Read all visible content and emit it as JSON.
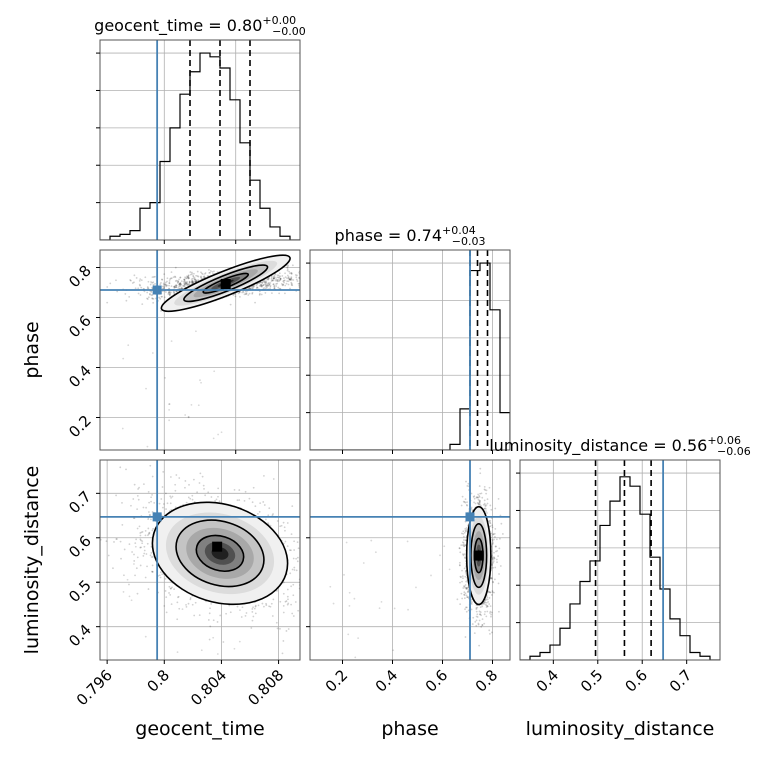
{
  "chart_data": {
    "type": "corner",
    "parameters": [
      "geocent_time",
      "phase",
      "luminosity_distance"
    ],
    "truth_color": "#4682b4",
    "grid": true,
    "panels": [
      {
        "id": "hist-geocent_time",
        "kind": "histogram",
        "param": "geocent_time",
        "title": {
          "lead": "geocent_time = 0.80",
          "sup": "+0.00",
          "sub": "−0.00"
        },
        "xlim": [
          0.7955,
          0.8095
        ],
        "ylim": [
          0,
          1.07
        ],
        "bin_edges": [
          0.7955,
          0.7962,
          0.7969,
          0.7976,
          0.7983,
          0.799,
          0.7997,
          0.8004,
          0.8011,
          0.8018,
          0.8025,
          0.8032,
          0.8039,
          0.8046,
          0.8053,
          0.806,
          0.8067,
          0.8074,
          0.8081,
          0.8088,
          0.8095
        ],
        "counts": [
          0.0,
          0.02,
          0.03,
          0.05,
          0.17,
          0.2,
          0.42,
          0.6,
          0.78,
          0.9,
          1.0,
          0.98,
          0.92,
          0.75,
          0.52,
          0.32,
          0.17,
          0.07,
          0.02,
          0.0
        ],
        "quantiles": [
          0.8018,
          0.8039,
          0.806
        ],
        "truth": 0.7995,
        "xticks": [],
        "yticks": []
      },
      {
        "id": "scatter-geocent_time-phase",
        "kind": "2d",
        "x_param": "geocent_time",
        "y_param": "phase",
        "xlim": [
          0.7955,
          0.8095
        ],
        "ylim": [
          0.07,
          0.87
        ],
        "center": [
          0.8043,
          0.737
        ],
        "spread": [
          0.0022,
          0.022
        ],
        "corr": 0.45,
        "levels": [
          0.7,
          1.3,
          2.0
        ],
        "mode": [
          0.8043,
          0.734
        ],
        "truth": [
          0.7995,
          0.71
        ],
        "xticks": [],
        "yticks": [
          0.2,
          0.4,
          0.6,
          0.8
        ]
      },
      {
        "id": "hist-phase",
        "kind": "histogram",
        "param": "phase",
        "title": {
          "lead": "phase = 0.74",
          "sup": "+0.04",
          "sub": "−0.03"
        },
        "xlim": [
          0.07,
          0.87
        ],
        "ylim": [
          0,
          1.07
        ],
        "bin_edges": [
          0.07,
          0.11,
          0.15,
          0.19,
          0.23,
          0.27,
          0.31,
          0.35,
          0.39,
          0.43,
          0.47,
          0.51,
          0.55,
          0.59,
          0.63,
          0.67,
          0.71,
          0.75,
          0.79,
          0.83,
          0.87
        ],
        "counts": [
          0.0,
          0.0,
          0.0,
          0.0,
          0.0,
          0.0,
          0.0,
          0.0,
          0.0,
          0.0,
          0.0,
          0.0,
          0.0,
          0.0,
          0.03,
          0.22,
          0.96,
          1.0,
          0.75,
          0.2
        ],
        "quantiles": [
          0.71,
          0.74,
          0.78
        ],
        "truth": 0.71,
        "xticks": [],
        "yticks": []
      },
      {
        "id": "scatter-geocent_time-luminosity_distance",
        "kind": "2d",
        "x_param": "geocent_time",
        "y_param": "luminosity_distance",
        "xlim": [
          0.7955,
          0.8095
        ],
        "ylim": [
          0.325,
          0.775
        ],
        "center": [
          0.8039,
          0.565
        ],
        "spread": [
          0.0022,
          0.05
        ],
        "corr": -0.35,
        "levels": [
          0.7,
          1.3,
          2.0
        ],
        "mode": [
          0.8037,
          0.58
        ],
        "truth": [
          0.7995,
          0.647
        ],
        "xticks": [
          0.796,
          0.8,
          0.804,
          0.808
        ],
        "yticks": [
          0.4,
          0.5,
          0.6,
          0.7
        ]
      },
      {
        "id": "scatter-phase-luminosity_distance",
        "kind": "2d",
        "x_param": "phase",
        "y_param": "luminosity_distance",
        "xlim": [
          0.07,
          0.87
        ],
        "ylim": [
          0.325,
          0.775
        ],
        "center": [
          0.745,
          0.56
        ],
        "spread": [
          0.022,
          0.05
        ],
        "corr": 0.0,
        "levels": [
          0.7,
          1.3,
          2.0
        ],
        "mode": [
          0.745,
          0.56
        ],
        "truth": [
          0.71,
          0.647
        ],
        "xticks": [
          0.2,
          0.4,
          0.6,
          0.8
        ],
        "yticks": []
      },
      {
        "id": "hist-luminosity_distance",
        "kind": "histogram",
        "param": "luminosity_distance",
        "title": {
          "lead": "luminosity_distance = 0.56",
          "sup": "+0.06",
          "sub": "−0.06"
        },
        "xlim": [
          0.325,
          0.775
        ],
        "ylim": [
          0,
          1.07
        ],
        "bin_edges": [
          0.325,
          0.3475,
          0.37,
          0.3925,
          0.415,
          0.4375,
          0.46,
          0.4825,
          0.505,
          0.5275,
          0.55,
          0.5725,
          0.595,
          0.6175,
          0.64,
          0.6625,
          0.685,
          0.7075,
          0.73,
          0.7525,
          0.775
        ],
        "counts": [
          0.0,
          0.02,
          0.04,
          0.08,
          0.17,
          0.3,
          0.42,
          0.53,
          0.72,
          0.85,
          0.98,
          0.93,
          0.78,
          0.55,
          0.38,
          0.22,
          0.13,
          0.04,
          0.02,
          0.0
        ],
        "quantiles": [
          0.495,
          0.56,
          0.62
        ],
        "truth": 0.647,
        "xticks": [
          0.4,
          0.5,
          0.6,
          0.7
        ],
        "yticks": []
      }
    ],
    "axis_labels": {
      "x": [
        "geocent_time",
        "phase",
        "luminosity_distance"
      ],
      "y": [
        "phase",
        "luminosity_distance"
      ]
    }
  }
}
